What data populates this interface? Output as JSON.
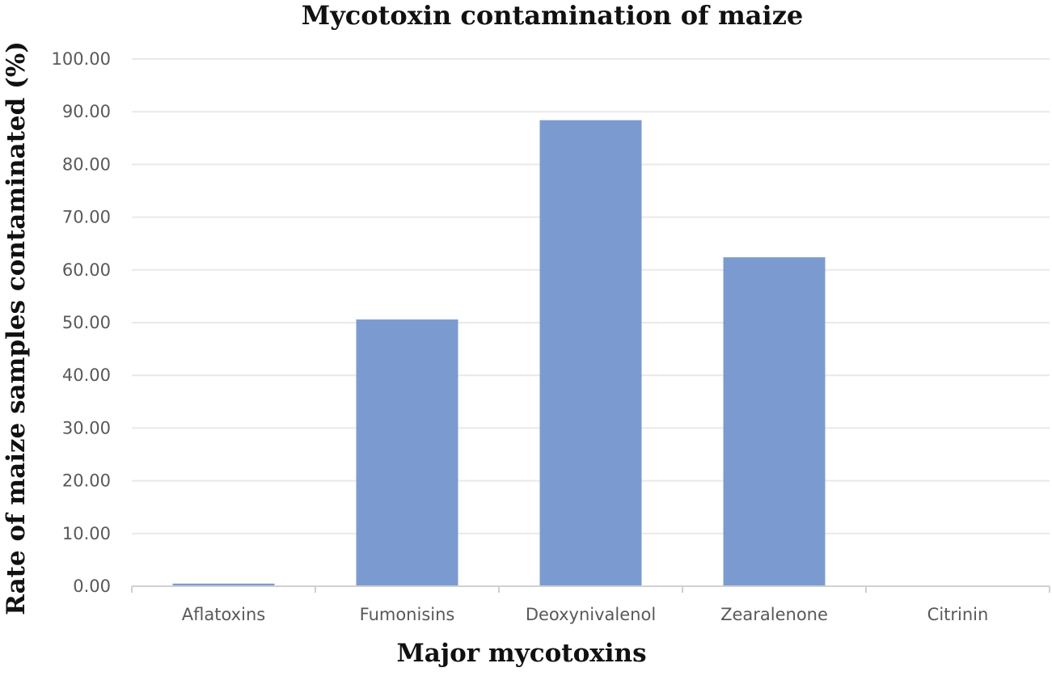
{
  "chart_data": {
    "type": "bar",
    "title": "Mycotoxin contamination of maize",
    "xlabel": "Major mycotoxins",
    "ylabel": "Rate of maize samples contaminated (%)",
    "categories": [
      "Aflatoxins",
      "Fumonisins",
      "Deoxynivalenol",
      "Zearalenone",
      "Citrinin"
    ],
    "values": [
      0.5,
      50.6,
      88.4,
      62.4,
      0.0
    ],
    "ylim": [
      0,
      100
    ],
    "yticks": [
      "0.00",
      "10.00",
      "20.00",
      "30.00",
      "40.00",
      "50.00",
      "60.00",
      "70.00",
      "80.00",
      "90.00",
      "100.00"
    ],
    "grid": true,
    "legend": "none",
    "colors": {
      "bar": "#7b9bd0",
      "grid": "#e9e9e9",
      "axis": "#d0d0d0"
    }
  }
}
